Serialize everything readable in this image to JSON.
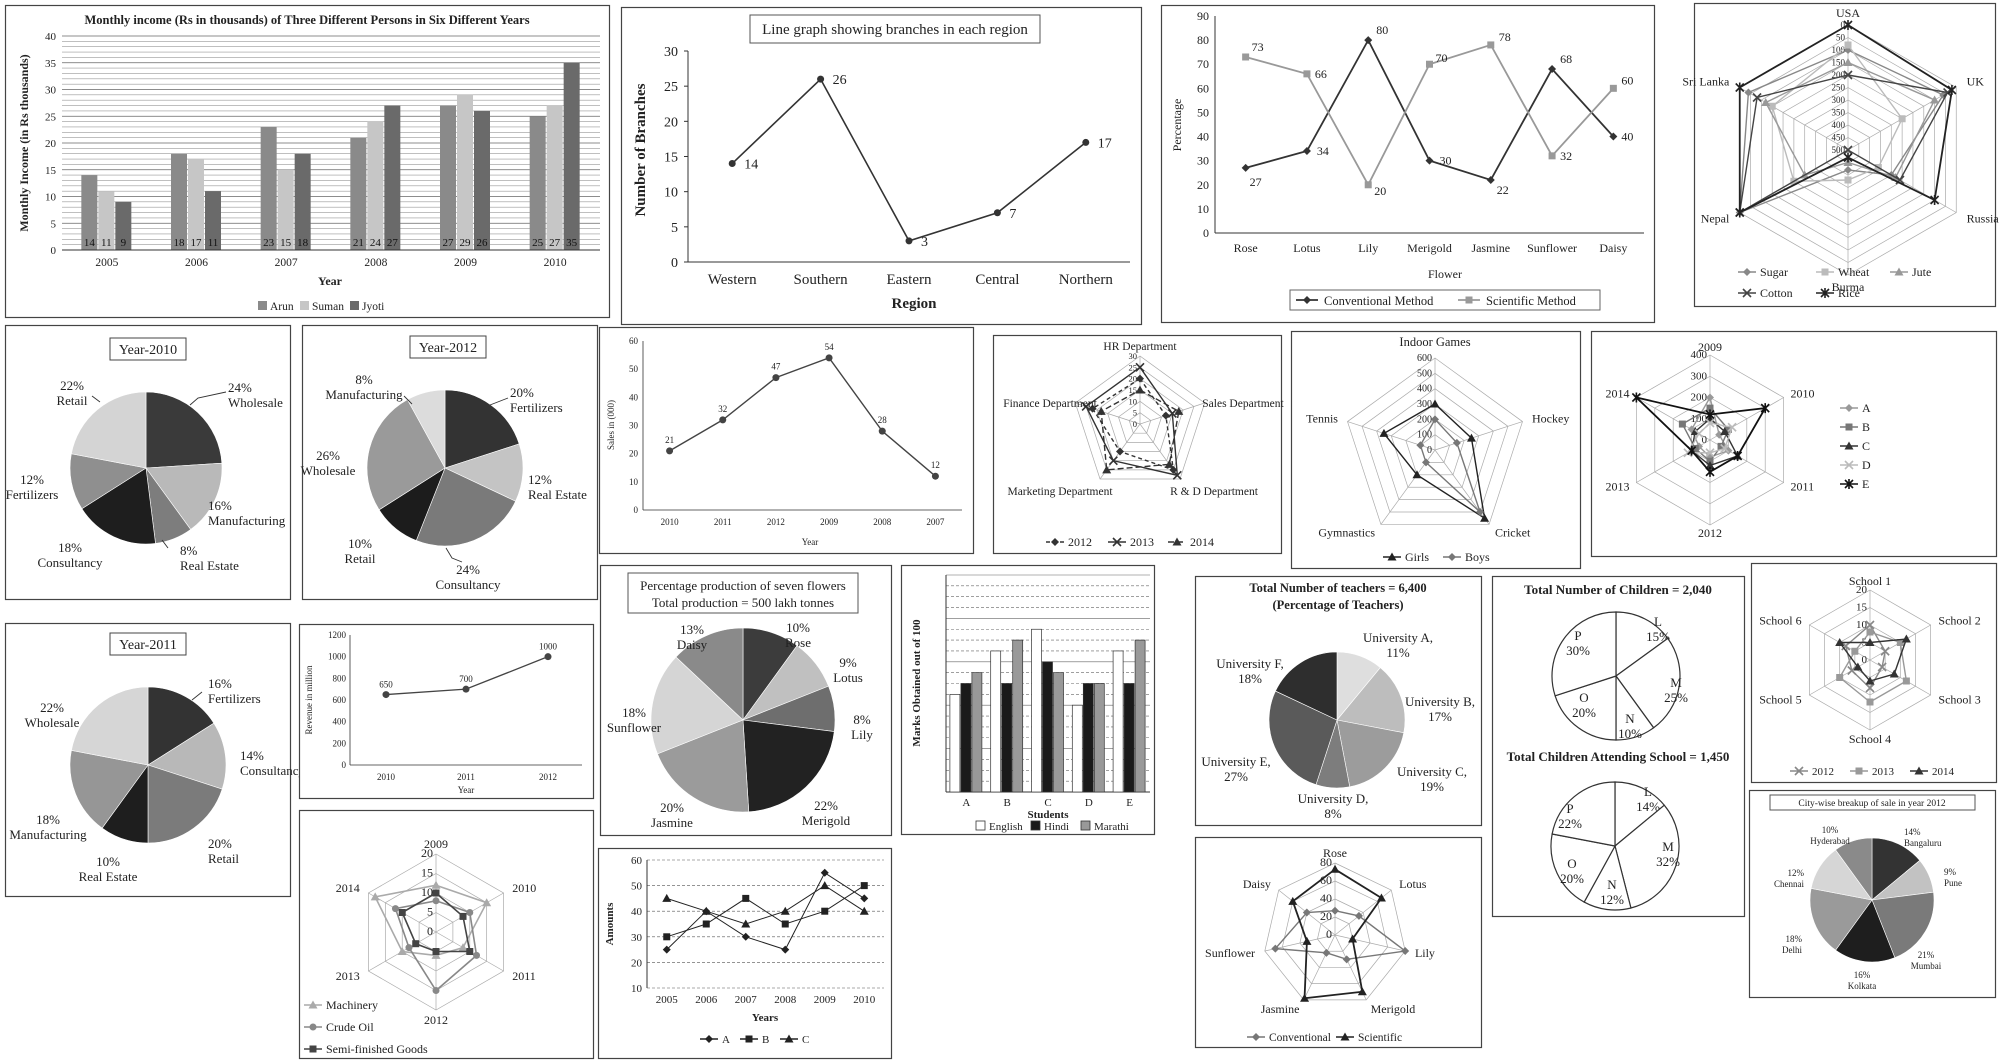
{
  "chart_data": [
    {
      "id": "income",
      "type": "bar",
      "title": "Monthly income (Rs in thousands) of Three Different Persons in Six Different Years",
      "xlabel": "Year",
      "ylabel": "Monthly Income (in Rs thousands)",
      "ylim": [
        0,
        40
      ],
      "yticks": [
        "0",
        "5",
        "10",
        "15",
        "20",
        "25",
        "30",
        "35",
        "40"
      ],
      "categories": [
        "2005",
        "2006",
        "2007",
        "2008",
        "2009",
        "2010"
      ],
      "series": [
        {
          "name": "Arun",
          "values": [
            14,
            18,
            23,
            21,
            27,
            25
          ],
          "color": "#8a8a8a"
        },
        {
          "name": "Suman",
          "values": [
            11,
            17,
            15,
            24,
            29,
            27
          ],
          "color": "#c6c6c6"
        },
        {
          "name": "Jyoti",
          "values": [
            9,
            11,
            18,
            27,
            26,
            35
          ],
          "color": "#6a6a6a"
        }
      ],
      "legend": "bottom"
    },
    {
      "id": "branches",
      "type": "line",
      "title": "Line graph showing branches in each region",
      "xlabel": "Region",
      "ylabel": "Number of Branches",
      "ylim": [
        0,
        30
      ],
      "yticks": [
        "0",
        "5",
        "10",
        "15",
        "20",
        "25",
        "30"
      ],
      "categories": [
        "Western",
        "Southern",
        "Eastern",
        "Central",
        "Northern"
      ],
      "values": [
        14,
        26,
        3,
        7,
        17
      ],
      "labels": [
        "14",
        "26",
        "3",
        "7",
        "17"
      ]
    },
    {
      "id": "flowers",
      "type": "line",
      "xlabel": "Flower",
      "ylabel": "Percentage",
      "ylim": [
        0,
        90
      ],
      "yticks": [
        "0",
        "10",
        "20",
        "30",
        "40",
        "50",
        "60",
        "70",
        "80",
        "90"
      ],
      "categories": [
        "Rose",
        "Lotus",
        "Lily",
        "Merigold",
        "Jasmine",
        "Sunflower",
        "Daisy"
      ],
      "series": [
        {
          "name": "Conventional Method",
          "values": [
            27,
            34,
            80,
            30,
            22,
            68,
            40
          ],
          "labels": [
            "27",
            "34",
            "80",
            "30",
            "22",
            "68",
            "40"
          ]
        },
        {
          "name": "Scientific Method",
          "values": [
            73,
            66,
            20,
            70,
            78,
            32,
            60
          ],
          "labels": [
            "73",
            "66",
            "20",
            "70",
            "78",
            "32",
            "60"
          ]
        }
      ],
      "legend": "bottom"
    },
    {
      "id": "countries",
      "type": "radar",
      "axes": [
        "USA",
        "UK",
        "Russia",
        "Burma",
        "Nepal",
        "Sri Lanka"
      ],
      "rticks": [
        "0",
        "50",
        "100",
        "150",
        "200",
        "250",
        "300",
        "350",
        "400",
        "450",
        "500"
      ],
      "rmax": 500,
      "inverted": true,
      "series": [
        {
          "name": "Sugar",
          "values": [
            100,
            60,
            300,
            420,
            0,
            40
          ]
        },
        {
          "name": "Wheat",
          "values": [
            80,
            250,
            360,
            380,
            250,
            150
          ]
        },
        {
          "name": "Jute",
          "values": [
            150,
            100,
            280,
            450,
            300,
            120
          ]
        },
        {
          "name": "Cotton",
          "values": [
            200,
            40,
            260,
            500,
            0,
            80
          ]
        },
        {
          "name": "Rice",
          "values": [
            0,
            20,
            100,
            470,
            0,
            0
          ]
        }
      ],
      "legend": "bottom"
    },
    {
      "id": "pie2010",
      "type": "pie",
      "title": "Year-2010",
      "slices": [
        {
          "label": "Wholesale",
          "pct": "24%",
          "value": 24,
          "color": "#3a3a3a"
        },
        {
          "label": "Manufacturing",
          "pct": "16%",
          "value": 16,
          "color": "#b9b9b9"
        },
        {
          "label": "Real Estate",
          "pct": "8%",
          "value": 8,
          "color": "#7d7d7d"
        },
        {
          "label": "Consultancy",
          "pct": "18%",
          "value": 18,
          "color": "#1e1e1e"
        },
        {
          "label": "Fertilizers",
          "pct": "12%",
          "value": 12,
          "color": "#8f8f8f"
        },
        {
          "label": "Retail",
          "pct": "22%",
          "value": 22,
          "color": "#d4d4d4"
        }
      ]
    },
    {
      "id": "pie2012",
      "type": "pie",
      "title": "Year-2012",
      "slices": [
        {
          "label": "Fertilizers",
          "pct": "20%",
          "value": 20,
          "color": "#333333"
        },
        {
          "label": "Real Estate",
          "pct": "12%",
          "value": 12,
          "color": "#c4c4c4"
        },
        {
          "label": "Consultancy",
          "pct": "24%",
          "value": 24,
          "color": "#7a7a7a"
        },
        {
          "label": "Retail",
          "pct": "10%",
          "value": 10,
          "color": "#1c1c1c"
        },
        {
          "label": "Wholesale",
          "pct": "26%",
          "value": 26,
          "color": "#9a9a9a"
        },
        {
          "label": "Manufacturing",
          "pct": "8%",
          "value": 8,
          "color": "#dcdcdc"
        }
      ]
    },
    {
      "id": "pie2011",
      "type": "pie",
      "title": "Year-2011",
      "slices": [
        {
          "label": "Fertilizers",
          "pct": "16%",
          "value": 16,
          "color": "#333333"
        },
        {
          "label": "Consultancy",
          "pct": "14%",
          "value": 14,
          "color": "#b8b8b8"
        },
        {
          "label": "Retail",
          "pct": "20%",
          "value": 20,
          "color": "#7b7b7b"
        },
        {
          "label": "Real Estate",
          "pct": "10%",
          "value": 10,
          "color": "#1e1e1e"
        },
        {
          "label": "Manufacturing",
          "pct": "18%",
          "value": 18,
          "color": "#969696"
        },
        {
          "label": "Wholesale",
          "pct": "22%",
          "value": 22,
          "color": "#d6d6d6"
        }
      ]
    },
    {
      "id": "sales",
      "type": "line",
      "xlabel": "Year",
      "ylabel": "Sales in (000)",
      "ylim": [
        0,
        60
      ],
      "yticks": [
        "0",
        "10",
        "20",
        "30",
        "40",
        "50",
        "60"
      ],
      "categories": [
        "2010",
        "2011",
        "2012",
        "2009",
        "2008",
        "2007"
      ],
      "values": [
        21,
        32,
        47,
        54,
        28,
        12
      ],
      "labels": [
        "21",
        "32",
        "47",
        "54",
        "28",
        "12"
      ]
    },
    {
      "id": "departments",
      "type": "radar",
      "axes": [
        "HR Department",
        "Sales Department",
        "R & D Department",
        "Marketing Department",
        "Finance Department"
      ],
      "rticks": [
        "0",
        "5",
        "10",
        "15",
        "20",
        "25",
        "30"
      ],
      "rmax": 30,
      "series": [
        {
          "name": "2012",
          "values": [
            20,
            12,
            25,
            15,
            22
          ]
        },
        {
          "name": "2013",
          "values": [
            25,
            15,
            28,
            20,
            25
          ]
        },
        {
          "name": "2014",
          "values": [
            15,
            18,
            22,
            25,
            18
          ]
        }
      ],
      "legend": "bottom"
    },
    {
      "id": "games",
      "type": "radar",
      "title": "Indoor Games",
      "axes": [
        "Indoor Games",
        "Hockey",
        "Cricket",
        "Gymnastics",
        "Tennis"
      ],
      "rticks": [
        "0",
        "100",
        "200",
        "300",
        "400",
        "500",
        "600"
      ],
      "rmax": 600,
      "series": [
        {
          "name": "Girls",
          "values": [
            300,
            250,
            550,
            200,
            350
          ]
        },
        {
          "name": "Boys",
          "values": [
            200,
            150,
            500,
            100,
            100
          ]
        }
      ],
      "legend": "bottom"
    },
    {
      "id": "yearsABCDE",
      "type": "radar",
      "axes": [
        "2009",
        "2010",
        "2011",
        "2012",
        "2013",
        "2014"
      ],
      "rticks": [
        "0",
        "100",
        "200",
        "300",
        "400"
      ],
      "rmax": 400,
      "series": [
        {
          "name": "A",
          "values": [
            200,
            50,
            100,
            80,
            60,
            100
          ]
        },
        {
          "name": "B",
          "values": [
            150,
            100,
            60,
            100,
            80,
            150
          ]
        },
        {
          "name": "C",
          "values": [
            100,
            80,
            150,
            120,
            100,
            80
          ]
        },
        {
          "name": "D",
          "values": [
            80,
            120,
            80,
            60,
            120,
            60
          ]
        },
        {
          "name": "E",
          "values": [
            120,
            300,
            150,
            150,
            100,
            400
          ]
        }
      ],
      "legend": "right"
    },
    {
      "id": "revenue",
      "type": "line",
      "xlabel": "Year",
      "ylabel": "Revenue in million",
      "ylim": [
        0,
        1200
      ],
      "yticks": [
        "0",
        "200",
        "400",
        "600",
        "800",
        "1000",
        "1200"
      ],
      "categories": [
        "2010",
        "2011",
        "2012"
      ],
      "values": [
        650,
        700,
        1000
      ],
      "labels": [
        "650",
        "700",
        "1000"
      ]
    },
    {
      "id": "sevenflowers",
      "type": "pie",
      "title": "Percentage production of seven flowers",
      "subtitle": "Total production = 500 lakh tonnes",
      "slices": [
        {
          "label": "Rose",
          "pct": "10%",
          "value": 10,
          "color": "#3c3c3c"
        },
        {
          "label": "Lotus",
          "pct": "9%",
          "value": 9,
          "color": "#c0c0c0"
        },
        {
          "label": "Lily",
          "pct": "8%",
          "value": 8,
          "color": "#6e6e6e"
        },
        {
          "label": "Merigold",
          "pct": "22%",
          "value": 22,
          "color": "#222222"
        },
        {
          "label": "Jasmine",
          "pct": "20%",
          "value": 20,
          "color": "#9b9b9b"
        },
        {
          "label": "Sunflower",
          "pct": "18%",
          "value": 18,
          "color": "#d5d5d5"
        },
        {
          "label": "Daisy",
          "pct": "13%",
          "value": 13,
          "color": "#8a8a8a"
        }
      ]
    },
    {
      "id": "marks",
      "type": "bar",
      "xlabel": "Students",
      "ylabel": "Marks Obtained out of 100",
      "ylim": [
        0,
        100
      ],
      "categories": [
        "A",
        "B",
        "C",
        "D",
        "E"
      ],
      "series": [
        {
          "name": "English",
          "values": [
            45,
            65,
            75,
            40,
            65
          ],
          "color": "#ffffff"
        },
        {
          "name": "Hindi",
          "values": [
            50,
            50,
            60,
            50,
            50
          ],
          "color": "#1a1a1a"
        },
        {
          "name": "Marathi",
          "values": [
            55,
            70,
            55,
            50,
            70
          ],
          "color": "#999999"
        }
      ],
      "legend": "bottom"
    },
    {
      "id": "teachers",
      "type": "pie",
      "title": "Total Number of teachers = 6,400",
      "subtitle": "(Percentage of Teachers)",
      "slices": [
        {
          "label": "University A,",
          "pct": "11%",
          "value": 11,
          "color": "#dedede"
        },
        {
          "label": "University B,",
          "pct": "17%",
          "value": 17,
          "color": "#bdbdbd"
        },
        {
          "label": "University C,",
          "pct": "19%",
          "value": 19,
          "color": "#9c9c9c"
        },
        {
          "label": "University D,",
          "pct": "8%",
          "value": 8,
          "color": "#7d7d7d"
        },
        {
          "label": "University E,",
          "pct": "27%",
          "value": 27,
          "color": "#5a5a5a"
        },
        {
          "label": "University F,",
          "pct": "18%",
          "value": 18,
          "color": "#2e2e2e"
        }
      ]
    },
    {
      "id": "children",
      "type": "pie",
      "title": "Total Number of Children = 2,040",
      "slices": [
        {
          "label": "L",
          "pct": "15%",
          "value": 15
        },
        {
          "label": "M",
          "pct": "25%",
          "value": 25
        },
        {
          "label": "N",
          "pct": "10%",
          "value": 10
        },
        {
          "label": "O",
          "pct": "20%",
          "value": 20
        },
        {
          "label": "P",
          "pct": "30%",
          "value": 30
        }
      ]
    },
    {
      "id": "childrenSchool",
      "type": "pie",
      "title": "Total Children Attending School = 1,450",
      "slices": [
        {
          "label": "L",
          "pct": "14%",
          "value": 14
        },
        {
          "label": "M",
          "pct": "32%",
          "value": 32
        },
        {
          "label": "N",
          "pct": "12%",
          "value": 12
        },
        {
          "label": "O",
          "pct": "20%",
          "value": 20
        },
        {
          "label": "P",
          "pct": "22%",
          "value": 22
        }
      ]
    },
    {
      "id": "schools",
      "type": "radar",
      "axes": [
        "School 1",
        "School 2",
        "School 3",
        "School 4",
        "School 5",
        "School 6"
      ],
      "rticks": [
        "0",
        "5",
        "10",
        "15",
        "20"
      ],
      "rmax": 20,
      "series": [
        {
          "name": "2012",
          "values": [
            10,
            5,
            4,
            8,
            6,
            8
          ]
        },
        {
          "name": "2013",
          "values": [
            8,
            10,
            12,
            12,
            10,
            5
          ]
        },
        {
          "name": "2014",
          "values": [
            5,
            12,
            8,
            6,
            4,
            10
          ]
        }
      ],
      "legend": "bottom"
    },
    {
      "id": "goods",
      "type": "radar",
      "axes": [
        "2009",
        "2010",
        "2011",
        "2012",
        "2013",
        "2014"
      ],
      "rticks": [
        "0",
        "5",
        "10",
        "15",
        "20"
      ],
      "rmax": 20,
      "series": [
        {
          "name": "Machinery",
          "values": [
            12,
            15,
            8,
            6,
            10,
            18
          ]
        },
        {
          "name": "Crude Oil",
          "values": [
            8,
            10,
            12,
            15,
            8,
            12
          ]
        },
        {
          "name": "Semi-finished Goods",
          "values": [
            10,
            8,
            10,
            5,
            6,
            10
          ]
        }
      ],
      "legend": "bottom"
    },
    {
      "id": "amounts",
      "type": "line",
      "xlabel": "Years",
      "ylabel": "Amounts",
      "ylim": [
        10,
        60
      ],
      "yticks": [
        "10",
        "20",
        "30",
        "40",
        "50",
        "60"
      ],
      "categories": [
        "2005",
        "2006",
        "2007",
        "2008",
        "2009",
        "2010"
      ],
      "series": [
        {
          "name": "A",
          "values": [
            25,
            40,
            30,
            25,
            55,
            45
          ]
        },
        {
          "name": "B",
          "values": [
            30,
            35,
            45,
            35,
            40,
            50
          ]
        },
        {
          "name": "C",
          "values": [
            45,
            40,
            35,
            40,
            50,
            40
          ]
        }
      ],
      "legend": "bottom"
    },
    {
      "id": "flowerRadar",
      "type": "radar",
      "axes": [
        "Rose",
        "Lotus",
        "Lily",
        "Merigold",
        "Jasmine",
        "Sunflower",
        "Daisy"
      ],
      "rticks": [
        "0",
        "20",
        "40",
        "60",
        "80"
      ],
      "rmax": 80,
      "series": [
        {
          "name": "Conventional",
          "values": [
            27,
            34,
            80,
            30,
            22,
            68,
            40
          ]
        },
        {
          "name": "Scientific",
          "values": [
            73,
            66,
            20,
            70,
            78,
            32,
            60
          ]
        }
      ],
      "legend": "bottom"
    },
    {
      "id": "citysales",
      "type": "pie",
      "title": "City-wise breakup of sale in year 2012",
      "slices": [
        {
          "label": "Bangaluru",
          "pct": "14%",
          "value": 14,
          "color": "#333333"
        },
        {
          "label": "Pune",
          "pct": "9%",
          "value": 9,
          "color": "#c2c2c2"
        },
        {
          "label": "Mumbai",
          "pct": "21%",
          "value": 21,
          "color": "#7a7a7a"
        },
        {
          "label": "Kolkata",
          "pct": "16%",
          "value": 16,
          "color": "#1e1e1e"
        },
        {
          "label": "Delhi",
          "pct": "18%",
          "value": 18,
          "color": "#9a9a9a"
        },
        {
          "label": "Chennai",
          "pct": "12%",
          "value": 12,
          "color": "#d6d6d6"
        },
        {
          "label": "Hyderabad",
          "pct": "10%",
          "value": 10,
          "color": "#8a8a8a"
        }
      ]
    }
  ]
}
